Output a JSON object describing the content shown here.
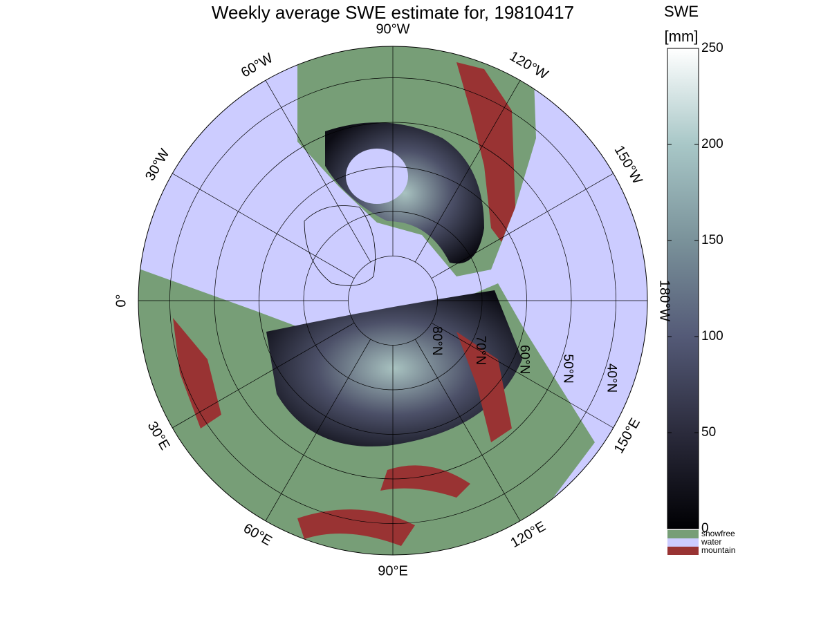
{
  "chart_data": {
    "type": "polar-map",
    "title": "Weekly average SWE estimate for, 19810417",
    "meridians": [
      {
        "value": -90,
        "label": "90°W"
      },
      {
        "value": -120,
        "label": "120°W"
      },
      {
        "value": -150,
        "label": "150°W"
      },
      {
        "value": -180,
        "label": "180°W"
      },
      {
        "value": 150,
        "label": "150°E"
      },
      {
        "value": 120,
        "label": "120°E"
      },
      {
        "value": 90,
        "label": "90°E"
      },
      {
        "value": 60,
        "label": "60°E"
      },
      {
        "value": 30,
        "label": "30°E"
      },
      {
        "value": 0,
        "label": "0°"
      },
      {
        "value": -30,
        "label": "30°W"
      },
      {
        "value": -60,
        "label": "60°W"
      }
    ],
    "parallels": [
      {
        "value": 80,
        "label": "80°N"
      },
      {
        "value": 70,
        "label": "70°N"
      },
      {
        "value": 60,
        "label": "60°N"
      },
      {
        "value": 50,
        "label": "50°N"
      },
      {
        "value": 40,
        "label": "40°N"
      }
    ],
    "colorbar": {
      "title": "SWE",
      "unit": "[mm]",
      "clim": [
        0,
        250
      ],
      "ticks": [
        0,
        50,
        100,
        150,
        200,
        250
      ]
    },
    "legend": [
      {
        "name": "snowfree",
        "color": "#779e77"
      },
      {
        "name": "water",
        "color": "#ccccff"
      },
      {
        "name": "mountain",
        "color": "#993333"
      }
    ]
  }
}
